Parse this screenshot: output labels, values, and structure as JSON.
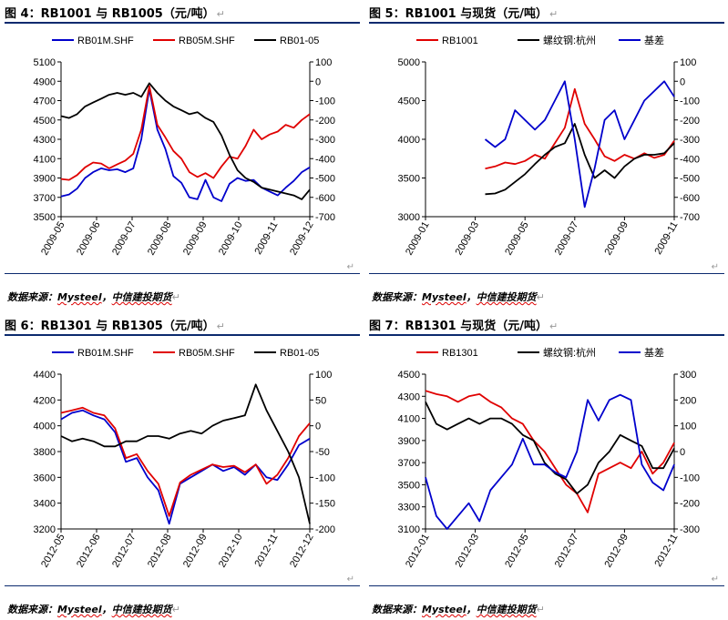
{
  "panels": [
    {
      "title": "图 4：RB1001 与 RB1005（元/吨）",
      "source_prefix": "数据来源：",
      "source_a": "Mysteel",
      "source_sep": "，",
      "source_b": "中信建投期货",
      "chart_data": {
        "type": "line",
        "x_ticks": [
          "2009-05",
          "2009-06",
          "2009-07",
          "2009-08",
          "2009-09",
          "2009-10",
          "2009-11",
          "2009-12"
        ],
        "y_left": {
          "min": 3500,
          "max": 5100,
          "ticks": [
            3500,
            3700,
            3900,
            4100,
            4300,
            4500,
            4700,
            4900,
            5100
          ]
        },
        "y_right": {
          "min": -700,
          "max": 100,
          "ticks": [
            -700,
            -600,
            -500,
            -400,
            -300,
            -200,
            -100,
            0,
            100
          ]
        },
        "series": [
          {
            "name": "RB01M.SHF",
            "color": "#0000cc",
            "axis": "left",
            "values": [
              3710,
              3730,
              3790,
              3900,
              3960,
              4000,
              3980,
              3990,
              3960,
              4000,
              4300,
              4820,
              4400,
              4200,
              3920,
              3850,
              3700,
              3680,
              3880,
              3700,
              3660,
              3840,
              3900,
              3870,
              3880,
              3800,
              3760,
              3720,
              3800,
              3870,
              3960,
              4010
            ]
          },
          {
            "name": "RB05M.SHF",
            "color": "#e00000",
            "axis": "left",
            "values": [
              3890,
              3880,
              3930,
              4010,
              4060,
              4050,
              4000,
              4040,
              4080,
              4150,
              4400,
              4850,
              4450,
              4320,
              4180,
              4100,
              3960,
              3910,
              3950,
              3900,
              4020,
              4120,
              4100,
              4230,
              4400,
              4300,
              4350,
              4380,
              4450,
              4420,
              4500,
              4560
            ]
          },
          {
            "name": "RB01-05",
            "color": "#000000",
            "axis": "right",
            "values": [
              -180,
              -190,
              -170,
              -130,
              -110,
              -90,
              -70,
              -60,
              -70,
              -60,
              -80,
              -10,
              -60,
              -100,
              -130,
              -150,
              -170,
              -160,
              -190,
              -210,
              -280,
              -380,
              -460,
              -500,
              -520,
              -550,
              -560,
              -570,
              -580,
              -590,
              -610,
              -560
            ]
          }
        ]
      }
    },
    {
      "title": "图 5：RB1001 与现货（元/吨）",
      "source_prefix": "数据来源：",
      "source_a": "Mysteel",
      "source_sep": "，",
      "source_b": "中信建投期货",
      "chart_data": {
        "type": "line",
        "x_ticks": [
          "2009-01",
          "2009-03",
          "2009-05",
          "2009-07",
          "2009-09",
          "2009-11"
        ],
        "y_left": {
          "min": 3000,
          "max": 5000,
          "ticks": [
            3000,
            3500,
            4000,
            4500,
            5000
          ]
        },
        "y_right": {
          "min": -700,
          "max": 100,
          "ticks": [
            -700,
            -600,
            -500,
            -400,
            -300,
            -200,
            -100,
            0,
            100
          ]
        },
        "series": [
          {
            "name": "RB1001",
            "color": "#e00000",
            "axis": "left",
            "values": [
              null,
              null,
              null,
              null,
              null,
              null,
              3620,
              3650,
              3700,
              3680,
              3720,
              3800,
              3750,
              3950,
              4150,
              4650,
              4200,
              4000,
              3780,
              3720,
              3800,
              3750,
              3820,
              3760,
              3800,
              3980
            ]
          },
          {
            "name": "螺纹钢:杭州",
            "color": "#000000",
            "axis": "left",
            "values": [
              null,
              null,
              null,
              null,
              null,
              null,
              3290,
              3300,
              3350,
              3450,
              3550,
              3680,
              3800,
              3900,
              3950,
              4200,
              3800,
              3500,
              3600,
              3500,
              3650,
              3750,
              3800,
              3800,
              3820,
              3950
            ]
          },
          {
            "name": "基差",
            "color": "#0000cc",
            "axis": "right",
            "values": [
              null,
              null,
              null,
              null,
              null,
              null,
              -300,
              -340,
              -300,
              -150,
              -200,
              -250,
              -200,
              -100,
              0,
              -300,
              -650,
              -450,
              -200,
              -150,
              -300,
              -200,
              -100,
              -50,
              0,
              -80
            ]
          }
        ]
      }
    },
    {
      "title": "图 6：RB1301 与 RB1305（元/吨）",
      "source_prefix": "数据来源：",
      "source_a": "Mysteel",
      "source_sep": "，",
      "source_b": "中信建投期货",
      "chart_data": {
        "type": "line",
        "x_ticks": [
          "2012-05",
          "2012-06",
          "2012-07",
          "2012-08",
          "2012-09",
          "2012-10",
          "2012-11",
          "2012-12"
        ],
        "y_left": {
          "min": 3200,
          "max": 4400,
          "ticks": [
            3200,
            3400,
            3600,
            3800,
            4000,
            4200,
            4400
          ]
        },
        "y_right": {
          "min": -200,
          "max": 100,
          "ticks": [
            -200,
            -150,
            -100,
            -50,
            0,
            50,
            100
          ]
        },
        "series": [
          {
            "name": "RB01M.SHF",
            "color": "#0000cc",
            "axis": "left",
            "values": [
              4050,
              4100,
              4120,
              4080,
              4050,
              3950,
              3720,
              3750,
              3600,
              3500,
              3240,
              3550,
              3600,
              3650,
              3700,
              3650,
              3680,
              3620,
              3700,
              3600,
              3580,
              3700,
              3850,
              3900
            ]
          },
          {
            "name": "RB05M.SHF",
            "color": "#e00000",
            "axis": "left",
            "values": [
              4100,
              4120,
              4140,
              4100,
              4080,
              3980,
              3750,
              3780,
              3650,
              3550,
              3300,
              3560,
              3620,
              3660,
              3700,
              3680,
              3690,
              3640,
              3700,
              3550,
              3620,
              3750,
              3920,
              4020
            ]
          },
          {
            "name": "RB01-05",
            "color": "#000000",
            "axis": "right",
            "values": [
              -20,
              -30,
              -25,
              -30,
              -40,
              -40,
              -30,
              -30,
              -20,
              -20,
              -25,
              -15,
              -10,
              -15,
              0,
              10,
              15,
              20,
              80,
              30,
              -10,
              -50,
              -100,
              -190
            ]
          }
        ]
      }
    },
    {
      "title": "图 7：RB1301 与现货（元/吨）",
      "source_prefix": "数据来源：",
      "source_a": "Mysteel",
      "source_sep": "，",
      "source_b": "中信建投期货",
      "chart_data": {
        "type": "line",
        "x_ticks": [
          "2012-01",
          "2012-03",
          "2012-05",
          "2012-07",
          "2012-09",
          "2012-11"
        ],
        "y_left": {
          "min": 3100,
          "max": 4500,
          "ticks": [
            3100,
            3300,
            3500,
            3700,
            3900,
            4100,
            4300,
            4500
          ]
        },
        "y_right": {
          "min": -300,
          "max": 300,
          "ticks": [
            -300,
            -200,
            -100,
            0,
            100,
            200,
            300
          ]
        },
        "series": [
          {
            "name": "RB1301",
            "color": "#e00000",
            "axis": "left",
            "values": [
              4350,
              4320,
              4300,
              4250,
              4300,
              4320,
              4250,
              4200,
              4100,
              4050,
              3900,
              3800,
              3650,
              3500,
              3420,
              3250,
              3600,
              3650,
              3700,
              3650,
              3800,
              3600,
              3700,
              3880
            ]
          },
          {
            "name": "螺纹钢:杭州",
            "color": "#000000",
            "axis": "left",
            "values": [
              4250,
              4050,
              4000,
              4050,
              4100,
              4050,
              4100,
              4100,
              4050,
              3950,
              3900,
              3700,
              3600,
              3550,
              3420,
              3500,
              3700,
              3800,
              3950,
              3900,
              3850,
              3650,
              3650,
              3830
            ]
          },
          {
            "name": "基差",
            "color": "#0000cc",
            "axis": "right",
            "values": [
              -100,
              -250,
              -300,
              -250,
              -200,
              -270,
              -150,
              -100,
              -50,
              50,
              -50,
              -50,
              -80,
              -100,
              0,
              200,
              120,
              200,
              220,
              200,
              -50,
              -120,
              -150,
              -50
            ]
          }
        ]
      }
    }
  ]
}
